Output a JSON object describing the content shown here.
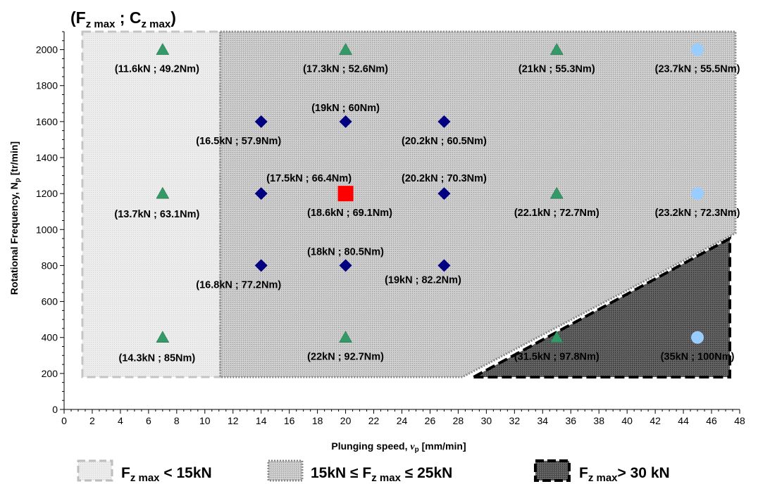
{
  "chart_data": {
    "type": "scatter",
    "corner_label": {
      "open": "(F",
      "f_sub": "z max",
      "sep": " ; C",
      "c_sub": "z max",
      "close": ")"
    },
    "xlabel": {
      "text": "Plunging speed, ",
      "symbol": "v",
      "sub": "p",
      "unit": " [mm/min]"
    },
    "ylabel": {
      "text": "Rotational Frequency, N",
      "sub": "p",
      "unit": " [tr/min]"
    },
    "xlim": [
      0,
      48
    ],
    "ylim": [
      0,
      2100
    ],
    "x_ticks": [
      0,
      2,
      4,
      6,
      8,
      10,
      12,
      14,
      16,
      18,
      20,
      22,
      24,
      26,
      28,
      30,
      32,
      34,
      36,
      38,
      40,
      42,
      44,
      46,
      48
    ],
    "y_ticks": [
      0,
      200,
      400,
      600,
      800,
      1000,
      1200,
      1400,
      1600,
      1800,
      2000
    ],
    "regions": [
      {
        "legend": {
          "pre": "F",
          "sub": "z max",
          "post": " < 15kN"
        }
      },
      {
        "legend": {
          "pre": "15kN ≤ F",
          "sub": "z max",
          "post": " ≤ 25kN"
        }
      },
      {
        "legend": {
          "pre": "F",
          "sub": "z max",
          "post": "> 30 kN"
        }
      }
    ],
    "points": [
      {
        "x": 7,
        "y": 2000,
        "marker": "triangle",
        "color": "#339966",
        "label": "(11.6kN ; 49.2Nm)"
      },
      {
        "x": 20,
        "y": 2000,
        "marker": "triangle",
        "color": "#339966",
        "label": "(17.3kN ; 52.6Nm)"
      },
      {
        "x": 35,
        "y": 2000,
        "marker": "triangle",
        "color": "#339966",
        "label": "(21kN ; 55.3Nm)"
      },
      {
        "x": 45,
        "y": 2000,
        "marker": "circle",
        "color": "#99ccff",
        "label": "(23.7kN ; 55.5Nm)"
      },
      {
        "x": 14,
        "y": 1600,
        "marker": "diamond",
        "color": "#000080",
        "label": "(16.5kN ; 57.9Nm)"
      },
      {
        "x": 20,
        "y": 1600,
        "marker": "diamond",
        "color": "#000080",
        "label": "(19kN ; 60Nm)"
      },
      {
        "x": 27,
        "y": 1600,
        "marker": "diamond",
        "color": "#000080",
        "label": "(20.2kN ; 60.5Nm)"
      },
      {
        "x": 7,
        "y": 1200,
        "marker": "triangle",
        "color": "#339966",
        "label": "(13.7kN ; 63.1Nm)"
      },
      {
        "x": 14,
        "y": 1200,
        "marker": "diamond",
        "color": "#000080",
        "label": "(17.5kN ; 66.4Nm)"
      },
      {
        "x": 20,
        "y": 1200,
        "marker": "square",
        "color": "#ff0000",
        "label": "(18.6kN ; 69.1Nm)"
      },
      {
        "x": 27,
        "y": 1200,
        "marker": "diamond",
        "color": "#000080",
        "label": "(20.2kN ; 70.3Nm)"
      },
      {
        "x": 35,
        "y": 1200,
        "marker": "triangle",
        "color": "#339966",
        "label": "(22.1kN ; 72.7Nm)"
      },
      {
        "x": 45,
        "y": 1200,
        "marker": "circle",
        "color": "#99ccff",
        "label": "(23.2kN ; 72.3Nm)"
      },
      {
        "x": 14,
        "y": 800,
        "marker": "diamond",
        "color": "#000080",
        "label": "(16.8kN ; 77.2Nm)"
      },
      {
        "x": 20,
        "y": 800,
        "marker": "diamond",
        "color": "#000080",
        "label": "(18kN ; 80.5Nm)"
      },
      {
        "x": 27,
        "y": 800,
        "marker": "diamond",
        "color": "#000080",
        "label": "(19kN ; 82.2Nm)"
      },
      {
        "x": 7,
        "y": 400,
        "marker": "triangle",
        "color": "#339966",
        "label": "(14.3kN ; 85Nm)"
      },
      {
        "x": 20,
        "y": 400,
        "marker": "triangle",
        "color": "#339966",
        "label": "(22kN ; 92.7Nm)"
      },
      {
        "x": 35,
        "y": 400,
        "marker": "triangle",
        "color": "#339966",
        "label": "(31.5kN ; 97.8Nm)"
      },
      {
        "x": 45,
        "y": 400,
        "marker": "circle",
        "color": "#99ccff",
        "label": "(35kN ; 100Nm)"
      }
    ]
  }
}
